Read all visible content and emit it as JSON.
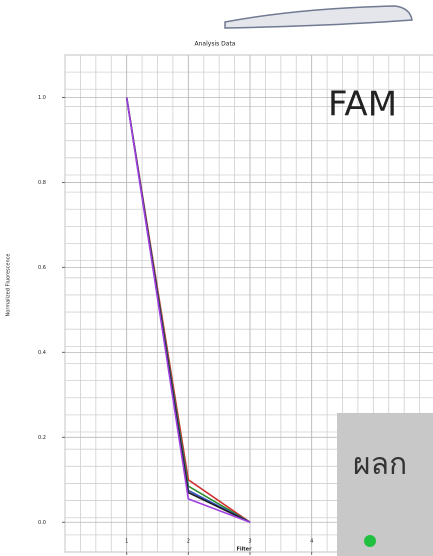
{
  "chart_data": {
    "type": "line",
    "title": "Analysis Data",
    "xlabel": "Filter",
    "ylabel": "Normalized Fluorescence",
    "annotation": "FAM",
    "x": [
      1,
      2,
      3
    ],
    "series": [
      {
        "color": "#d03030",
        "values": [
          1.0,
          0.1,
          0.0
        ]
      },
      {
        "color": "#2e8b2e",
        "values": [
          1.0,
          0.085,
          0.0
        ]
      },
      {
        "color": "#3050c8",
        "values": [
          1.0,
          0.075,
          0.0
        ]
      },
      {
        "color": "#202020",
        "values": [
          1.0,
          0.07,
          0.0
        ]
      },
      {
        "color": "#a040e0",
        "values": [
          1.0,
          0.055,
          0.0
        ]
      }
    ],
    "xlim": [
      0,
      6
    ],
    "xticks": [
      1,
      2,
      3,
      4
    ],
    "ylim": [
      -0.07,
      1.1
    ],
    "yticks": [
      {
        "value": 0,
        "label": "0.0"
      },
      0.2,
      0.4,
      0.6,
      0.8,
      {
        "value": 1,
        "label": "1.0"
      }
    ],
    "grid": true
  },
  "overlay": {
    "text": "ผลก"
  }
}
